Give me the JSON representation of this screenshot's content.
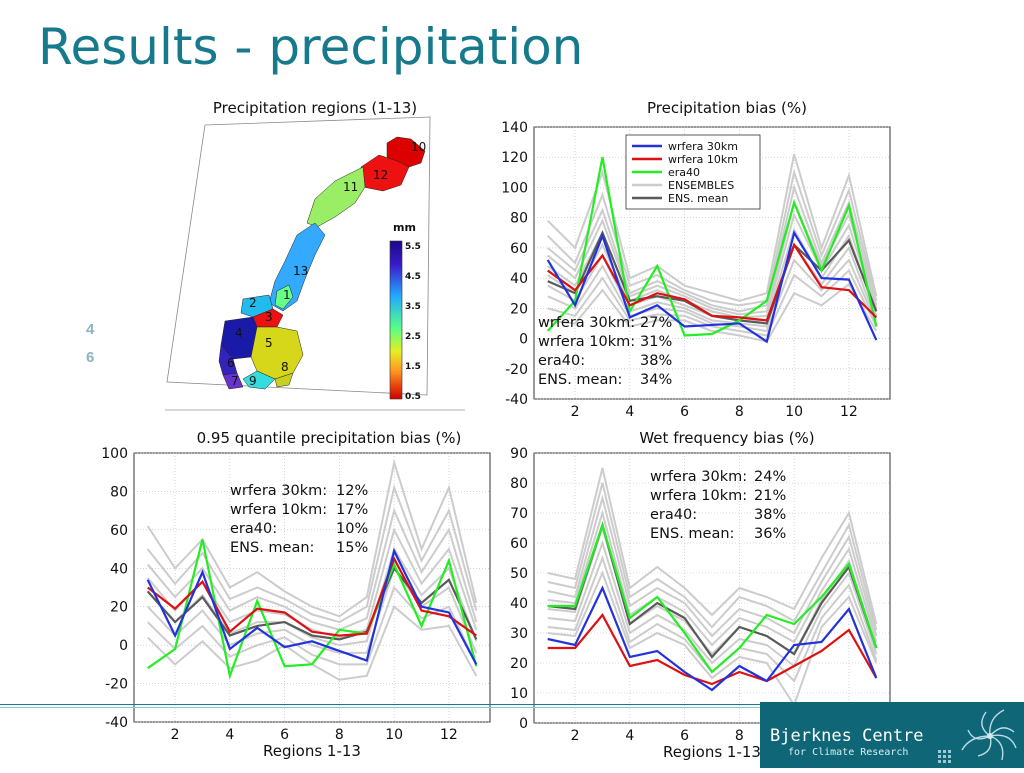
{
  "slide": {
    "title": "Results - precipitation",
    "side_numbers": [
      "4",
      "6"
    ]
  },
  "colors": {
    "blue": "#2233dd",
    "red": "#dd1111",
    "green": "#22ee22",
    "ens": "#cccccc",
    "ensmean": "#5a5a5a",
    "accent": "#177a8c"
  },
  "logo": {
    "name": "Bjerknes Centre",
    "subtitle": "for Climate Research"
  },
  "chart_data": [
    {
      "type": "map",
      "title": "Precipitation regions (1-13)",
      "colorbar_label": "mm",
      "colorbar_ticks": [
        "5.5",
        "4.5",
        "3.5",
        "2.5",
        "1.5",
        "0.5"
      ],
      "region_labels": [
        "1",
        "2",
        "3",
        "4",
        "5",
        "6",
        "7",
        "8",
        "9",
        "10",
        "11",
        "12",
        "13"
      ]
    },
    {
      "type": "line",
      "title": "Precipitation bias (%)",
      "xlim": [
        0.5,
        13.5
      ],
      "ylim": [
        -40,
        140
      ],
      "xticks": [
        2,
        4,
        6,
        8,
        10,
        12
      ],
      "yticks": [
        -40,
        -20,
        0,
        20,
        40,
        60,
        80,
        100,
        120,
        140
      ],
      "x": [
        1,
        2,
        3,
        4,
        5,
        6,
        7,
        8,
        9,
        10,
        11,
        12,
        13
      ],
      "legend": [
        "wrfera 30km",
        "wrfera 10km",
        "era40",
        "ENSEMBLES",
        "ENS. mean"
      ],
      "annotations": [
        [
          "wrfera 30km:",
          "27%"
        ],
        [
          "wrfera 10km:",
          "31%"
        ],
        [
          "era40:",
          "38%"
        ],
        [
          "ENS. mean:",
          "34%"
        ]
      ],
      "series": [
        {
          "name": "wrfera 30km",
          "values": [
            52,
            22,
            68,
            14,
            22,
            8,
            9,
            10,
            -2,
            70,
            40,
            39,
            -1
          ]
        },
        {
          "name": "wrfera 10km",
          "values": [
            45,
            32,
            55,
            22,
            30,
            26,
            15,
            14,
            12,
            62,
            34,
            32,
            14
          ]
        },
        {
          "name": "era40",
          "values": [
            5,
            25,
            120,
            18,
            48,
            2,
            3,
            12,
            25,
            90,
            45,
            88,
            8
          ]
        },
        {
          "name": "ENS. mean",
          "values": [
            38,
            30,
            70,
            25,
            28,
            25,
            15,
            12,
            10,
            62,
            45,
            65,
            18
          ]
        }
      ],
      "ensembles": [
        [
          78,
          60,
          110,
          40,
          48,
          35,
          30,
          25,
          30,
          122,
          60,
          108,
          28
        ],
        [
          68,
          50,
          95,
          35,
          42,
          32,
          25,
          22,
          25,
          110,
          55,
          98,
          25
        ],
        [
          60,
          45,
          85,
          30,
          38,
          30,
          22,
          18,
          22,
          100,
          50,
          90,
          22
        ],
        [
          55,
          40,
          78,
          28,
          35,
          28,
          20,
          16,
          18,
          90,
          48,
          82,
          20
        ],
        [
          48,
          35,
          70,
          25,
          32,
          25,
          18,
          14,
          15,
          82,
          45,
          75,
          18
        ],
        [
          42,
          30,
          62,
          22,
          28,
          22,
          15,
          12,
          12,
          72,
          40,
          68,
          15
        ],
        [
          35,
          25,
          55,
          18,
          24,
          20,
          12,
          10,
          8,
          62,
          36,
          60,
          12
        ],
        [
          28,
          20,
          48,
          15,
          20,
          18,
          10,
          8,
          5,
          52,
          32,
          52,
          10
        ],
        [
          20,
          15,
          40,
          12,
          16,
          15,
          8,
          5,
          2,
          42,
          28,
          45,
          8
        ],
        [
          12,
          10,
          32,
          8,
          12,
          12,
          5,
          2,
          -2,
          30,
          22,
          36,
          5
        ]
      ]
    },
    {
      "type": "line",
      "title": "0.95 quantile precipitation bias (%)",
      "xlabel": "Regions 1-13",
      "xlim": [
        0.5,
        13.5
      ],
      "ylim": [
        -40,
        100
      ],
      "xticks": [
        2,
        4,
        6,
        8,
        10,
        12
      ],
      "yticks": [
        -40,
        -20,
        0,
        20,
        40,
        60,
        80,
        100
      ],
      "x": [
        1,
        2,
        3,
        4,
        5,
        6,
        7,
        8,
        9,
        10,
        11,
        12,
        13
      ],
      "annotations": [
        [
          "wrfera 30km:",
          "12%"
        ],
        [
          "wrfera 10km:",
          "17%"
        ],
        [
          "era40:",
          "10%"
        ],
        [
          "ENS. mean:",
          "15%"
        ]
      ],
      "series": [
        {
          "name": "wrfera 30km",
          "values": [
            34,
            5,
            38,
            -2,
            9,
            -1,
            2,
            -3,
            -8,
            49,
            20,
            17,
            -10
          ]
        },
        {
          "name": "wrfera 10km",
          "values": [
            30,
            19,
            33,
            7,
            19,
            17,
            7,
            5,
            6,
            45,
            18,
            15,
            5
          ]
        },
        {
          "name": "era40",
          "values": [
            -12,
            -2,
            55,
            -16,
            23,
            -11,
            -10,
            8,
            6,
            42,
            10,
            44,
            -11
          ]
        },
        {
          "name": "ENS. mean",
          "values": [
            28,
            12,
            25,
            5,
            10,
            12,
            5,
            3,
            7,
            40,
            22,
            34,
            3
          ]
        }
      ],
      "ensembles": [
        [
          62,
          40,
          55,
          30,
          38,
          28,
          20,
          15,
          25,
          95,
          50,
          82,
          22
        ],
        [
          50,
          32,
          48,
          24,
          30,
          24,
          16,
          12,
          20,
          82,
          44,
          70,
          18
        ],
        [
          42,
          25,
          40,
          18,
          25,
          20,
          12,
          8,
          14,
          70,
          38,
          60,
          12
        ],
        [
          35,
          18,
          33,
          12,
          18,
          16,
          8,
          4,
          8,
          60,
          32,
          50,
          8
        ],
        [
          28,
          12,
          26,
          6,
          12,
          12,
          4,
          0,
          2,
          50,
          26,
          40,
          2
        ],
        [
          20,
          5,
          18,
          0,
          6,
          8,
          0,
          -4,
          -4,
          40,
          20,
          30,
          -4
        ],
        [
          12,
          -2,
          10,
          -6,
          0,
          4,
          -5,
          -10,
          -10,
          30,
          14,
          20,
          -10
        ],
        [
          4,
          -10,
          2,
          -12,
          -8,
          0,
          -10,
          -18,
          -16,
          20,
          8,
          10,
          -16
        ]
      ]
    },
    {
      "type": "line",
      "title": "Wet frequency bias (%)",
      "xlabel": "Regions 1-13",
      "xlim": [
        0.5,
        13.5
      ],
      "ylim": [
        0,
        90
      ],
      "xticks": [
        2,
        4,
        6,
        8,
        10,
        12
      ],
      "yticks": [
        0,
        10,
        20,
        30,
        40,
        50,
        60,
        70,
        80,
        90
      ],
      "x": [
        1,
        2,
        3,
        4,
        5,
        6,
        7,
        8,
        9,
        10,
        11,
        12,
        13
      ],
      "annotations": [
        [
          "wrfera 30km:",
          "24%"
        ],
        [
          "wrfera 10km:",
          "21%"
        ],
        [
          "era40:",
          "38%"
        ],
        [
          "ENS. mean:",
          "36%"
        ]
      ],
      "series": [
        {
          "name": "wrfera 30km",
          "values": [
            28,
            26,
            45,
            22,
            24,
            17,
            11,
            19,
            14,
            26,
            27,
            38,
            15
          ]
        },
        {
          "name": "wrfera 10km",
          "values": [
            25,
            25,
            36,
            19,
            21,
            16,
            13,
            17,
            14,
            19,
            24,
            31,
            15
          ]
        },
        {
          "name": "era40",
          "values": [
            39,
            39,
            66,
            35,
            42,
            30,
            17,
            25,
            36,
            33,
            42,
            53,
            25
          ]
        },
        {
          "name": "ENS. mean",
          "values": [
            39,
            38,
            66,
            33,
            40,
            35,
            22,
            32,
            29,
            23,
            40,
            52,
            25
          ]
        }
      ],
      "ensembles": [
        [
          50,
          48,
          85,
          45,
          52,
          45,
          36,
          45,
          42,
          38,
          55,
          70,
          33
        ],
        [
          47,
          45,
          80,
          42,
          48,
          42,
          32,
          42,
          39,
          34,
          50,
          66,
          31
        ],
        [
          44,
          42,
          75,
          39,
          45,
          40,
          29,
          38,
          35,
          30,
          47,
          62,
          29
        ],
        [
          41,
          40,
          70,
          36,
          42,
          37,
          26,
          35,
          32,
          27,
          44,
          58,
          27
        ],
        [
          38,
          37,
          65,
          33,
          39,
          34,
          23,
          32,
          29,
          23,
          41,
          54,
          25
        ],
        [
          35,
          34,
          60,
          30,
          36,
          31,
          20,
          28,
          26,
          19,
          38,
          50,
          23
        ],
        [
          32,
          31,
          55,
          27,
          33,
          28,
          17,
          25,
          23,
          14,
          35,
          46,
          21
        ],
        [
          30,
          29,
          50,
          25,
          30,
          26,
          15,
          22,
          20,
          6,
          32,
          42,
          20
        ]
      ]
    }
  ]
}
